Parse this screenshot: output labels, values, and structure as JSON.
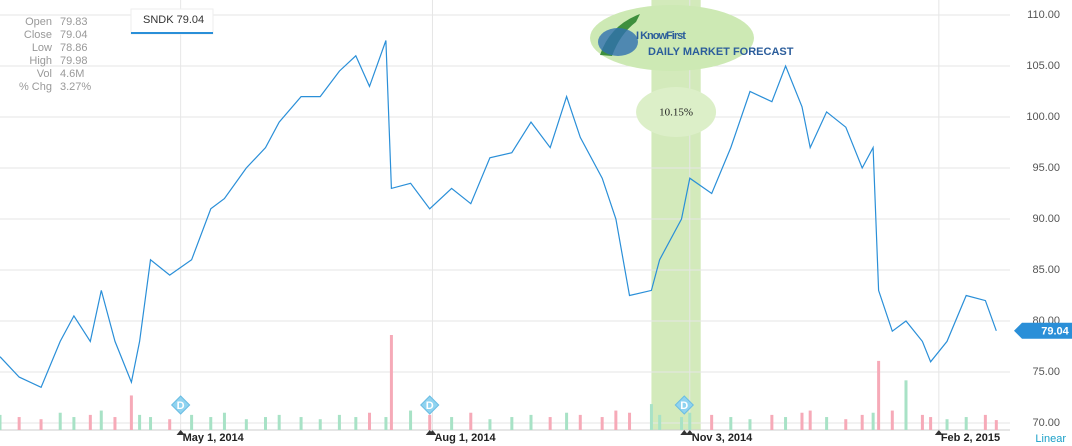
{
  "chart_data": {
    "type": "line",
    "stats": [
      {
        "label": "Open",
        "value": "79.83"
      },
      {
        "label": "Close",
        "value": "79.04"
      },
      {
        "label": "Low",
        "value": "78.86"
      },
      {
        "label": "High",
        "value": "79.98"
      },
      {
        "label": "Vol",
        "value": "4.6M"
      },
      {
        "label": "% Chg",
        "value": "3.27%"
      }
    ],
    "logo": {
      "title": "I KnowFirst",
      "subtitle": "DAILY MARKET FORECAST"
    },
    "x": [
      "2014-02-24",
      "2014-03-03",
      "2014-03-11",
      "2014-03-18",
      "2014-03-23",
      "2014-03-29",
      "2014-04-02",
      "2014-04-07",
      "2014-04-13",
      "2014-04-16",
      "2014-04-20",
      "2014-04-27",
      "2014-05-05",
      "2014-05-12",
      "2014-05-17",
      "2014-05-25",
      "2014-06-01",
      "2014-06-06",
      "2014-06-14",
      "2014-06-21",
      "2014-06-28",
      "2014-07-04",
      "2014-07-09",
      "2014-07-15",
      "2014-07-17",
      "2014-07-24",
      "2014-07-31",
      "2014-08-08",
      "2014-08-15",
      "2014-08-22",
      "2014-08-30",
      "2014-09-06",
      "2014-09-13",
      "2014-09-19",
      "2014-09-24",
      "2014-10-02",
      "2014-10-07",
      "2014-10-12",
      "2014-10-20",
      "2014-10-23",
      "2014-10-31",
      "2014-11-03",
      "2014-11-11",
      "2014-11-18",
      "2014-11-25",
      "2014-12-03",
      "2014-12-08",
      "2014-12-14",
      "2014-12-17",
      "2014-12-23",
      "2014-12-30",
      "2015-01-05",
      "2015-01-09",
      "2015-01-11",
      "2015-01-16",
      "2015-01-21",
      "2015-01-27",
      "2015-01-30",
      "2015-02-05",
      "2015-02-12",
      "2015-02-19",
      "2015-02-23"
    ],
    "series": [
      {
        "name": "SNDK",
        "color": "#2a8fd8",
        "values": [
          76.5,
          74.5,
          73.5,
          78,
          80.5,
          78,
          83,
          78,
          74,
          78,
          86,
          84.5,
          86,
          91,
          92,
          95,
          97,
          99.5,
          102,
          102,
          104.5,
          106,
          103,
          107.5,
          93,
          93.5,
          91,
          93,
          91.5,
          96,
          96.5,
          99.5,
          97,
          102,
          98,
          94,
          90,
          82.5,
          83,
          86,
          90,
          94,
          92.5,
          97,
          102.5,
          101.5,
          105,
          101,
          97,
          100.5,
          99,
          95,
          97,
          83,
          79,
          80,
          78,
          76,
          78,
          82.5,
          82,
          79.04
        ]
      }
    ],
    "volume": [
      7,
      6,
      5,
      8,
      6,
      7,
      9,
      6,
      16,
      7,
      6,
      5,
      7,
      6,
      8,
      5,
      6,
      7,
      6,
      5,
      7,
      6,
      8,
      6,
      44,
      9,
      7,
      6,
      8,
      5,
      6,
      7,
      6,
      8,
      7,
      6,
      9,
      8,
      12,
      7,
      6,
      8,
      7,
      6,
      5,
      7,
      6,
      8,
      9,
      6,
      5,
      7,
      8,
      32,
      9,
      23,
      7,
      6,
      5,
      6,
      7,
      4.6
    ],
    "up_color": "#a8e2c6",
    "down_color": "#f6aab8",
    "xlim": [
      "2014-02-24",
      "2015-02-28"
    ],
    "xticks": [
      {
        "value": "2014-05-01",
        "label": "May 1, 2014"
      },
      {
        "value": "2014-08-01",
        "label": "Aug 1, 2014"
      },
      {
        "value": "2014-11-03",
        "label": "Nov 3, 2014"
      },
      {
        "value": "2015-02-02",
        "label": "Feb 2, 2015"
      }
    ],
    "ylim": [
      70,
      110
    ],
    "yticks": [
      {
        "value": 70,
        "label": "70.00"
      },
      {
        "value": 75,
        "label": "75.00"
      },
      {
        "value": 80,
        "label": "80.00"
      },
      {
        "value": 85,
        "label": "85.00"
      },
      {
        "value": 90,
        "label": "90.00"
      },
      {
        "value": 95,
        "label": "95.00"
      },
      {
        "value": 100,
        "label": "100.00"
      },
      {
        "value": 105,
        "label": "105.00"
      },
      {
        "value": 110,
        "label": "110.00"
      }
    ],
    "grid": true,
    "events": [
      {
        "x": "2014-05-01",
        "label": "D"
      },
      {
        "x": "2014-07-31",
        "label": "D"
      },
      {
        "x": "2014-11-01",
        "label": "D"
      }
    ],
    "highlight": {
      "x": [
        "2014-10-20",
        "2014-11-07"
      ],
      "label": "10.15%",
      "color": "#d3eabb"
    },
    "scale": "Linear"
  }
}
